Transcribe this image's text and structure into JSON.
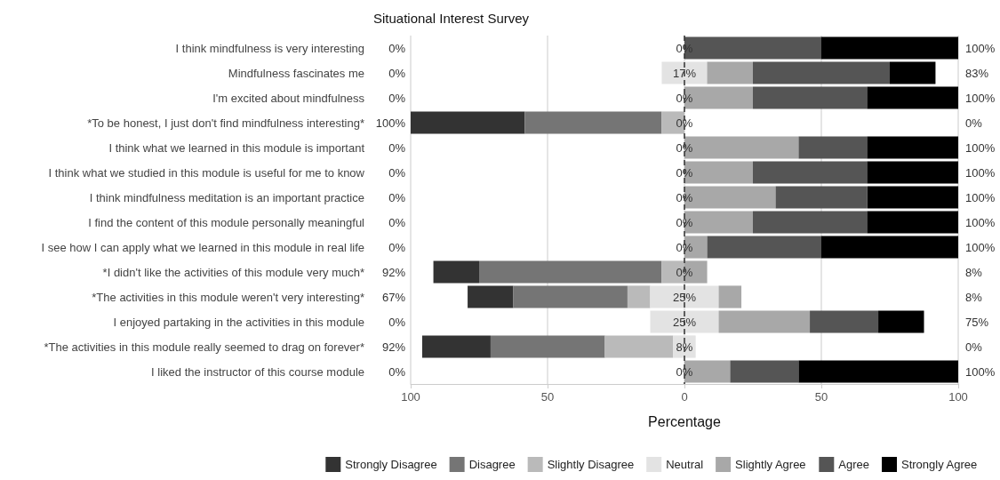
{
  "chart_data": {
    "type": "bar",
    "orientation": "horizontal",
    "title": "Situational Interest Survey",
    "xlabel": "Percentage",
    "categories": [
      "I think mindfulness is very interesting",
      "Mindfulness fascinates me",
      "I'm excited about mindfulness",
      "*To be honest, I just don't find mindfulness interesting*",
      "I think what we learned in this module is important",
      "I think what we studied in this module is useful for me to know",
      "I think mindfulness meditation is an important practice",
      "I find the content of this module personally meaningful",
      "I see how I can apply what we learned in this module in real life",
      "*I didn't like the activities of this module very much*",
      "*The activities in this module weren't very interesting*",
      "I enjoyed partaking in the activities in this module",
      "*The activities in this module really seemed to drag on forever*",
      "I liked the instructor of this course module"
    ],
    "series": [
      {
        "name": "Strongly Disagree",
        "color": "#333333",
        "values": [
          null,
          null,
          null,
          41.7,
          null,
          null,
          null,
          null,
          null,
          16.7,
          16.7,
          null,
          25,
          null
        ],
        "base": [
          null,
          null,
          null,
          -100,
          null,
          null,
          null,
          null,
          null,
          -91.7,
          -79.2,
          null,
          -95.8,
          null
        ]
      },
      {
        "name": "Disagree",
        "color": "#757575",
        "values": [
          null,
          null,
          null,
          50,
          null,
          null,
          null,
          null,
          null,
          66.7,
          41.7,
          null,
          41.7,
          null
        ],
        "base": [
          null,
          null,
          null,
          -58.3,
          null,
          null,
          null,
          null,
          null,
          -75,
          -62.5,
          null,
          -70.8,
          null
        ]
      },
      {
        "name": "Slightly Disagree",
        "color": "#bababa",
        "values": [
          null,
          null,
          null,
          8.3,
          null,
          null,
          null,
          null,
          null,
          8.3,
          8.3,
          null,
          25,
          null
        ],
        "base": [
          null,
          null,
          null,
          -8.3,
          null,
          null,
          null,
          null,
          null,
          -8.3,
          -20.8,
          null,
          -29.2,
          null
        ]
      },
      {
        "name": "Neutral",
        "color": "#e3e3e3",
        "values": [
          null,
          16.7,
          null,
          null,
          null,
          null,
          null,
          null,
          null,
          null,
          25,
          25,
          8.3,
          null
        ],
        "base": [
          null,
          -8.3,
          null,
          null,
          null,
          null,
          null,
          null,
          null,
          null,
          -12.5,
          -12.5,
          -4.2,
          null
        ]
      },
      {
        "name": "Slightly Agree",
        "color": "#a8a8a8",
        "values": [
          null,
          16.7,
          25,
          null,
          41.7,
          25,
          33.3,
          25,
          8.3,
          8.3,
          8.3,
          33.3,
          null,
          16.7
        ],
        "base": [
          null,
          8.3,
          0,
          null,
          0,
          0,
          0,
          0,
          0,
          0,
          12.5,
          12.5,
          null,
          0
        ]
      },
      {
        "name": "Agree",
        "color": "#555555",
        "values": [
          50,
          50,
          41.7,
          null,
          25,
          41.7,
          33.3,
          41.7,
          41.7,
          null,
          null,
          25,
          null,
          25
        ],
        "base": [
          0,
          25,
          25,
          null,
          41.7,
          25,
          33.3,
          25,
          8.3,
          null,
          null,
          45.8,
          null,
          16.7
        ]
      },
      {
        "name": "Strongly Agree",
        "color": "#000000",
        "values": [
          50,
          16.7,
          33.3,
          null,
          33.3,
          33.3,
          33.3,
          33.3,
          50,
          null,
          null,
          16.7,
          null,
          58.3
        ],
        "base": [
          50,
          75,
          66.7,
          null,
          66.7,
          66.7,
          66.7,
          66.7,
          50,
          null,
          null,
          70.8,
          null,
          41.7
        ]
      }
    ],
    "xlim": [
      -100,
      100
    ],
    "xticks": [
      {
        "value": -100,
        "label": "100"
      },
      {
        "value": -50,
        "label": "50"
      },
      0,
      50,
      100
    ],
    "grid": "x",
    "legend": "bottom",
    "ref_lines": [
      {
        "axis": "x",
        "value": 0,
        "color": "#333333",
        "line_style": "dashed"
      }
    ],
    "annotations": [
      "0%",
      "0%",
      "100%",
      "0%",
      "17%",
      "83%",
      "0%",
      "0%",
      "100%",
      "100%",
      "0%",
      "0%",
      "0%",
      "0%",
      "100%",
      "0%",
      "0%",
      "100%",
      "0%",
      "0%",
      "100%",
      "0%",
      "0%",
      "100%",
      "0%",
      "0%",
      "100%",
      "92%",
      "0%",
      "8%",
      "67%",
      "25%",
      "8%",
      "0%",
      "25%",
      "75%",
      "92%",
      "8%",
      "0%",
      "0%",
      "0%",
      "100%"
    ]
  }
}
